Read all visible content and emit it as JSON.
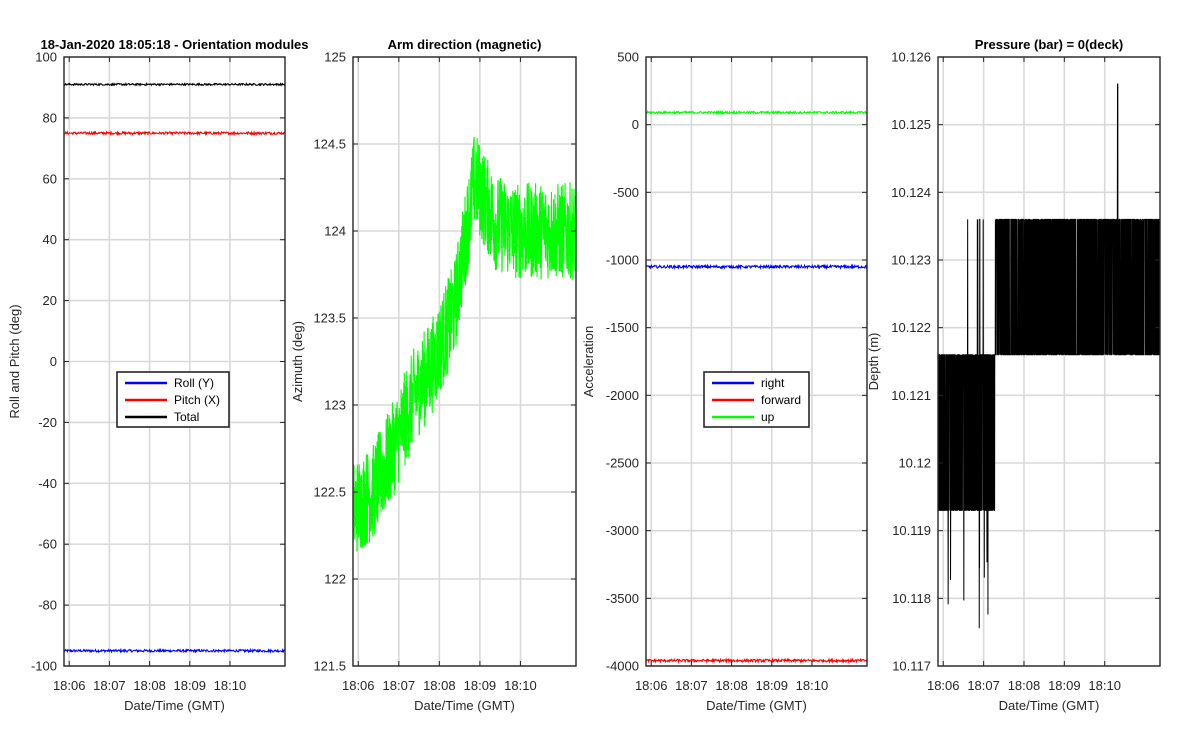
{
  "chart_data": [
    {
      "type": "line",
      "title": "18-Jan-2020 18:05:18 - Orientation modules",
      "xlabel": "Date/Time (GMT)",
      "ylabel": "Roll and Pitch (deg)",
      "xticks": [
        "18:06",
        "18:07",
        "18:08",
        "18:09",
        "18:10"
      ],
      "xlim_minutes": [
        0,
        5.5
      ],
      "ylim": [
        -100,
        100
      ],
      "yticks": [
        "-100",
        "-80",
        "-60",
        "-40",
        "-20",
        "0",
        "20",
        "40",
        "60",
        "80",
        "100"
      ],
      "grid": true,
      "legend": "center",
      "series": [
        {
          "name": "Roll (Y)",
          "color": "#0000ff",
          "mean": -95,
          "noise": 0.4,
          "drift": []
        },
        {
          "name": "Pitch (X)",
          "color": "#ff0000",
          "mean": 75,
          "noise": 0.4,
          "drift": []
        },
        {
          "name": "Total",
          "color": "#000000",
          "mean": 91,
          "noise": 0.3,
          "drift": []
        }
      ]
    },
    {
      "type": "line",
      "title": "Arm direction (magnetic)",
      "xlabel": "Date/Time (GMT)",
      "ylabel": "Azimuth (deg)",
      "xticks": [
        "18:06",
        "18:07",
        "18:08",
        "18:09",
        "18:10"
      ],
      "xlim_minutes": [
        0,
        5.5
      ],
      "ylim": [
        121.5,
        125
      ],
      "yticks": [
        "121.5",
        "122",
        "122.5",
        "123",
        "123.5",
        "124",
        "124.5",
        "125"
      ],
      "grid": true,
      "series": [
        {
          "name": "Azimuth",
          "color": "#00ff00",
          "noise": 0.28,
          "drift": [
            [
              0,
              122.4
            ],
            [
              0.5,
              122.5
            ],
            [
              1,
              122.75
            ],
            [
              1.5,
              123.05
            ],
            [
              2,
              123.25
            ],
            [
              2.5,
              123.55
            ],
            [
              3,
              124.3
            ],
            [
              3.5,
              124.05
            ],
            [
              4,
              124.0
            ],
            [
              4.5,
              124.0
            ],
            [
              5,
              124.0
            ],
            [
              5.5,
              124.0
            ]
          ]
        }
      ]
    },
    {
      "type": "line",
      "title": "",
      "xlabel": "Date/Time (GMT)",
      "ylabel": "Acceleration",
      "xticks": [
        "18:06",
        "18:07",
        "18:08",
        "18:09",
        "18:10"
      ],
      "xlim_minutes": [
        0,
        5.5
      ],
      "ylim": [
        -4000,
        500
      ],
      "yticks": [
        "-4000",
        "-3500",
        "-3000",
        "-2500",
        "-2000",
        "-1500",
        "-1000",
        "-500",
        "0",
        "500"
      ],
      "grid": true,
      "legend": "center",
      "series": [
        {
          "name": "right",
          "color": "#0000ff",
          "mean": -1050,
          "noise": 10,
          "drift": []
        },
        {
          "name": "forward",
          "color": "#ff0000",
          "mean": -3960,
          "noise": 10,
          "drift": []
        },
        {
          "name": "up",
          "color": "#00ff00",
          "mean": 90,
          "noise": 8,
          "drift": []
        }
      ]
    },
    {
      "type": "line",
      "title": "Pressure (bar) = 0(deck)",
      "xlabel": "Date/Time (GMT)",
      "ylabel": "Depth (m)",
      "xticks": [
        "18:06",
        "18:07",
        "18:08",
        "18:09",
        "18:10"
      ],
      "xlim_minutes": [
        0,
        5.5
      ],
      "ylim": [
        10.117,
        10.126
      ],
      "yticks": [
        "10.117",
        "10.118",
        "10.119",
        "10.12",
        "10.121",
        "10.122",
        "10.123",
        "10.124",
        "10.125",
        "10.126"
      ],
      "grid": true,
      "series": [
        {
          "name": "Depth",
          "color": "#000000",
          "noise": 0,
          "step_values": [
            10.1193,
            10.1216,
            10.1236
          ],
          "step_levels_by_segment": [
            [
              0,
              1.42,
              0
            ],
            [
              1.42,
              5.5,
              1
            ]
          ],
          "spike": [
            4.45,
            10.1256
          ]
        }
      ]
    }
  ]
}
